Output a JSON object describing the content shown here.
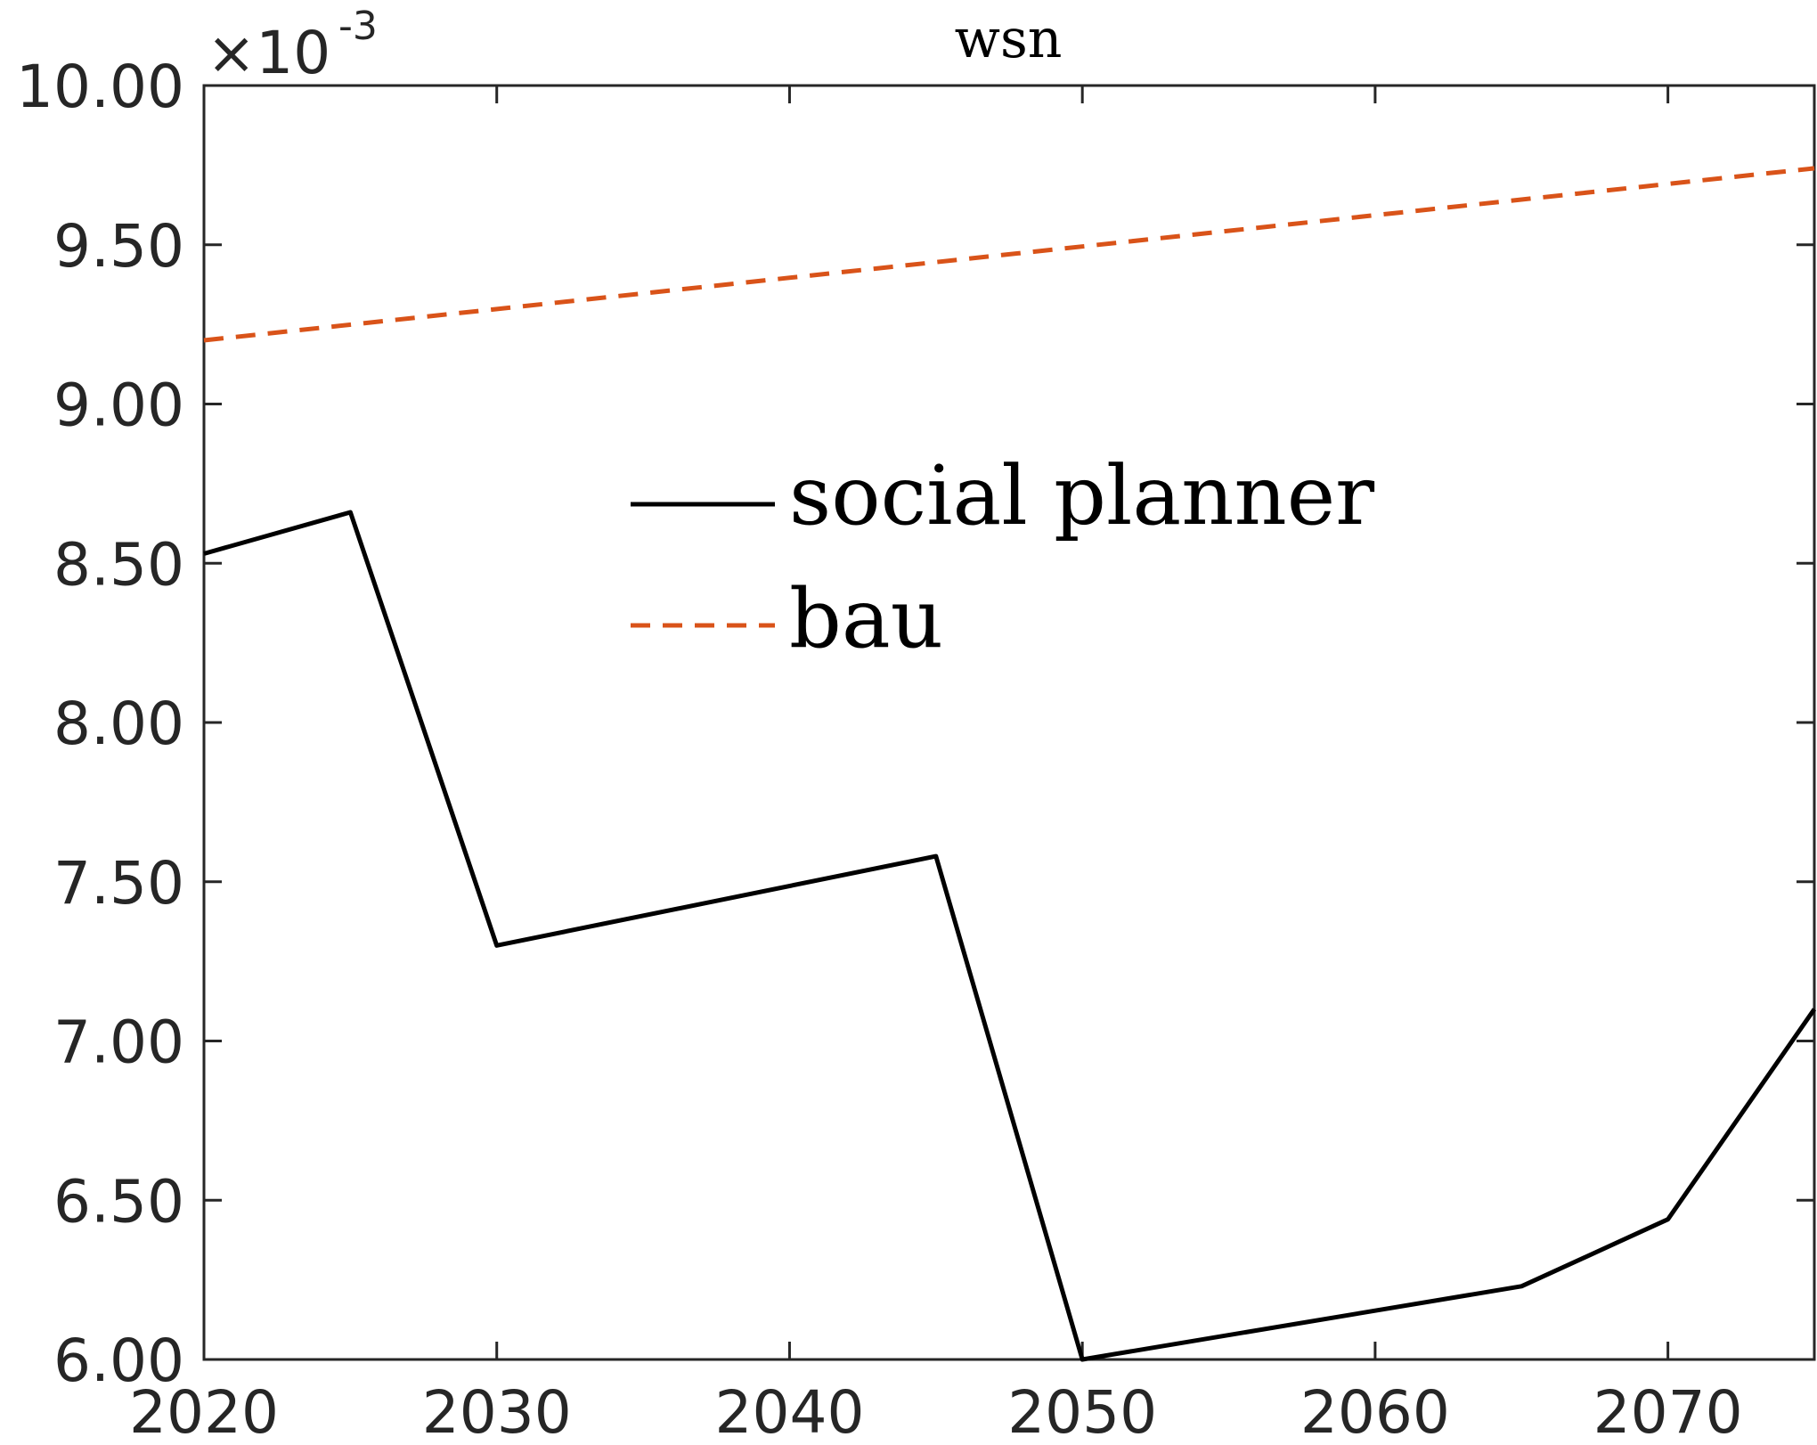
{
  "chart_data": {
    "type": "line",
    "title": "wsn",
    "xlabel": "",
    "ylabel": "",
    "y_multiplier": {
      "base": "×10",
      "exponent": "-3"
    },
    "xlim": [
      2020,
      2075
    ],
    "ylim": [
      6.0,
      10.0
    ],
    "x_ticks": [
      2020,
      2030,
      2040,
      2050,
      2060,
      2070
    ],
    "x_tick_labels": [
      "2020",
      "2030",
      "2040",
      "2050",
      "2060",
      "2070"
    ],
    "y_ticks": [
      6.0,
      6.5,
      7.0,
      7.5,
      8.0,
      8.5,
      9.0,
      9.5,
      10.0
    ],
    "y_tick_labels": [
      "6.00",
      "6.50",
      "7.00",
      "7.50",
      "8.00",
      "8.50",
      "9.00",
      "9.50",
      "10.00"
    ],
    "grid": false,
    "legend_position": "center",
    "series": [
      {
        "name": "social planner",
        "color": "#000000",
        "style": "solid",
        "x": [
          2020,
          2025,
          2030,
          2045,
          2050,
          2065,
          2070,
          2075
        ],
        "y": [
          8.53,
          8.66,
          7.3,
          7.58,
          6.0,
          6.23,
          6.44,
          7.1
        ]
      },
      {
        "name": "bau",
        "color": "#D95319",
        "style": "dashed",
        "x": [
          2020,
          2075
        ],
        "y": [
          9.2,
          9.74
        ]
      }
    ]
  }
}
